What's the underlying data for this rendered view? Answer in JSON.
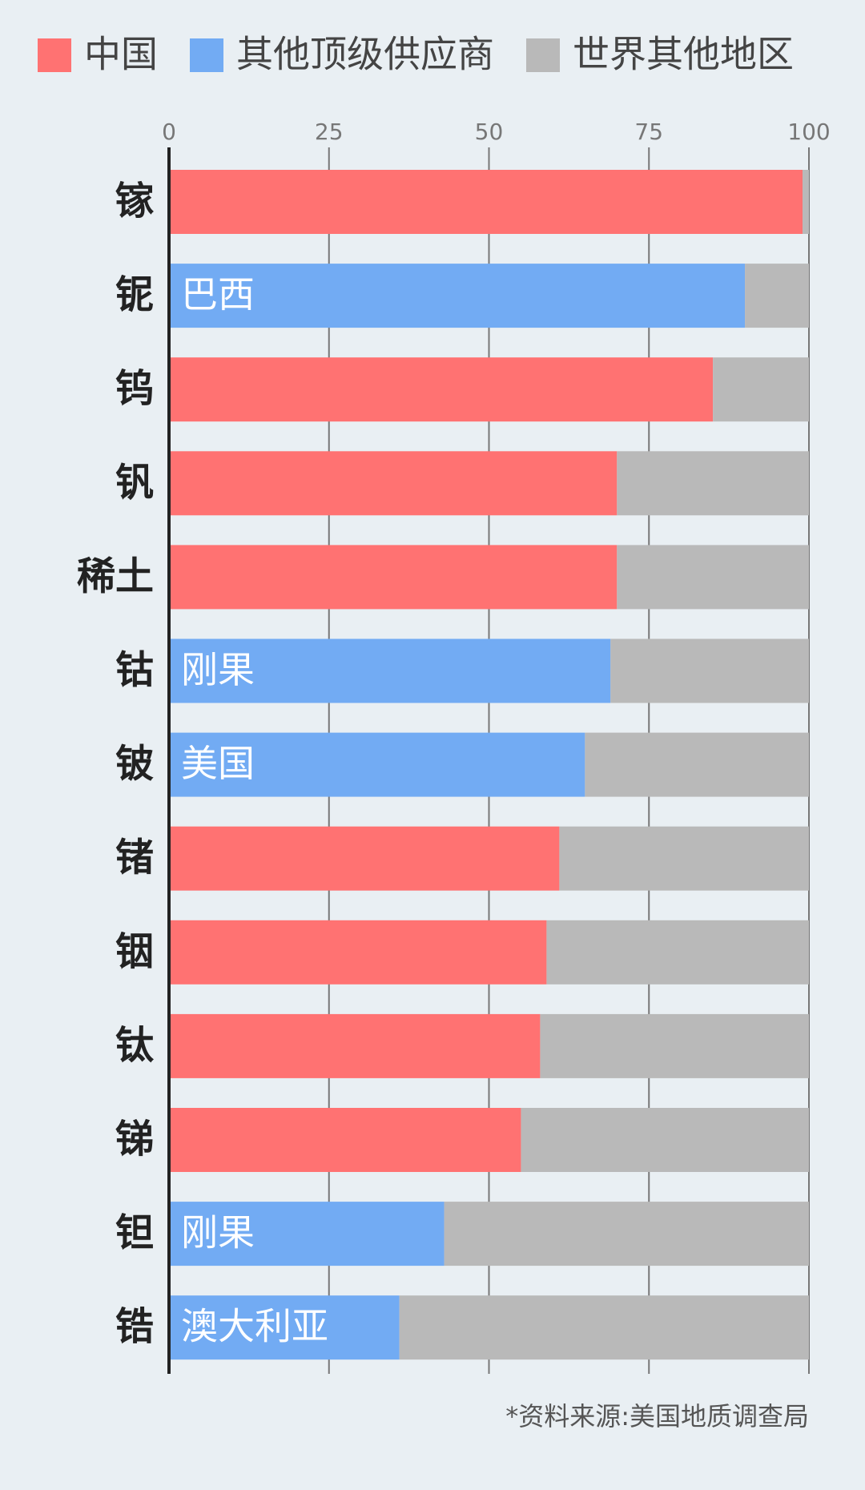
{
  "chart_data": {
    "type": "stacked-bar-horizontal",
    "categories": [
      "镓",
      "铌",
      "钨",
      "钒",
      "稀土",
      "钴",
      "铍",
      "锗",
      "铟",
      "钛",
      "锑",
      "钽",
      "锆"
    ],
    "series": [
      {
        "name": "中国",
        "color": "#ff7272",
        "values": [
          99,
          null,
          85,
          70,
          70,
          null,
          null,
          61,
          59,
          58,
          55,
          null,
          null
        ]
      },
      {
        "name": "其他顶级供应商",
        "color": "#72abf3",
        "values": [
          null,
          90,
          null,
          null,
          null,
          69,
          65,
          null,
          null,
          null,
          null,
          43,
          36
        ],
        "labels": [
          null,
          "巴西",
          null,
          null,
          null,
          "刚果",
          "美国",
          null,
          null,
          null,
          null,
          "刚果",
          "澳大利亚"
        ]
      },
      {
        "name": "世界其他地区",
        "color": "#b9b9b9",
        "values": [
          1,
          10,
          15,
          30,
          30,
          31,
          35,
          39,
          41,
          42,
          45,
          57,
          64
        ]
      }
    ],
    "xlim": [
      0,
      100
    ],
    "xticks": [
      0,
      25,
      50,
      75,
      100
    ],
    "grid": true,
    "footnote": "*资料来源:美国地质调查局"
  }
}
